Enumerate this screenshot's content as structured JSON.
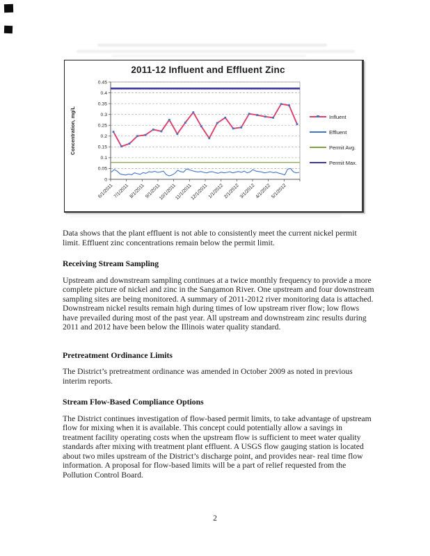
{
  "chart_data": {
    "type": "line",
    "title": "2011-12 Influent and Effluent Zinc",
    "ylabel": "Concentration, mg/L",
    "ylim": [
      0,
      0.45
    ],
    "yticks": [
      0,
      0.05,
      0.1,
      0.15,
      0.2,
      0.25,
      0.3,
      0.35,
      0.4,
      0.45
    ],
    "ytick_labels": [
      "0",
      "0.05",
      "0.1",
      "0.15",
      "0.2",
      "0.25",
      "0.3",
      "0.35",
      "0.4",
      "0.45"
    ],
    "xtick_labels": [
      "6/1/2011",
      "7/1/2011",
      "8/1/2011",
      "9/1/2011",
      "10/1/2011",
      "11/1/2011",
      "12/1/2011",
      "1/1/2012",
      "2/1/2012",
      "3/1/2012",
      "4/1/2012",
      "5/1/2012"
    ],
    "grid": "horizontal-dashed",
    "legend_position": "right",
    "series": [
      {
        "name": "Influent",
        "type": "line+markers",
        "color": "#dd3e6b",
        "marker_color": "#3f74c4",
        "line_width": 1.9,
        "values": [
          0.22,
          0.152,
          0.165,
          0.2,
          0.205,
          0.23,
          0.222,
          0.275,
          0.21,
          0.262,
          0.31,
          0.245,
          0.19,
          0.26,
          0.285,
          0.235,
          0.24,
          0.303,
          0.297,
          0.29,
          0.285,
          0.348,
          0.342,
          0.255
        ]
      },
      {
        "name": "Effluent",
        "type": "line",
        "color": "#3f74c4",
        "line_width": 1.1,
        "values": [
          0.033,
          0.045,
          0.038,
          0.025,
          0.022,
          0.02,
          0.024,
          0.021,
          0.03,
          0.026,
          0.023,
          0.031,
          0.028,
          0.035,
          0.033,
          0.037,
          0.032,
          0.034,
          0.038,
          0.022,
          0.016,
          0.02,
          0.028,
          0.042,
          0.035,
          0.033,
          0.048,
          0.044,
          0.04,
          0.036,
          0.034,
          0.036,
          0.032,
          0.03,
          0.034,
          0.035,
          0.031,
          0.028,
          0.033,
          0.03,
          0.032,
          0.035,
          0.03,
          0.033,
          0.036,
          0.032,
          0.038,
          0.03,
          0.034,
          0.045,
          0.038,
          0.036,
          0.034,
          0.03,
          0.032,
          0.035,
          0.031,
          0.033,
          0.028,
          0.025,
          0.02,
          0.047,
          0.05,
          0.034,
          0.03,
          0.032
        ]
      },
      {
        "name": "Permit Avg.",
        "type": "hline",
        "color": "#7fa23e",
        "line_width": 1.3,
        "value": 0.078
      },
      {
        "name": "Permit Max.",
        "type": "hline",
        "color": "#3a36a0",
        "line_width": 2.6,
        "value": 0.42
      }
    ]
  },
  "document": {
    "intro": "Data shows that the plant effluent is not able to consistently meet the current nickel permit limit.  Effluent zinc concentrations remain below the permit limit.",
    "heading_receiving": "Receiving Stream Sampling",
    "para_receiving": "Upstream and downstream sampling continues at a twice monthly frequency to provide a more complete picture of nickel and zinc in the Sangamon River.  One upstream and four downstream sampling sites are being monitored.   A summary of 2011-2012 river monitoring data is attached.  Downstream nickel results remain high during times of low upstream river flow; low flows have prevailed during most of the past year.  All upstream and downstream zinc results during 2011 and 2012 have been below the Illinois water quality standard.",
    "heading_pretreatment": "Pretreatment Ordinance Limits",
    "para_pretreatment": "The District’s pretreatment ordinance was amended in October 2009 as noted in previous interim reports.",
    "heading_streamflow": "Stream Flow-Based Compliance Options",
    "para_streamflow": "The District continues investigation of flow-based permit limits, to take advantage of upstream flow for mixing when it is available.  This concept could potentially allow a savings in treatment facility operating costs when the upstream flow is sufficient to meet water quality standards after mixing with treatment plant effluent.  A USGS flow gauging station is located about two miles upstream of the District’s discharge point, and provides near- real time flow information.  A proposal for flow-based limits will be a part of relief requested from the Pollution Control Board.",
    "page_number": "2"
  }
}
